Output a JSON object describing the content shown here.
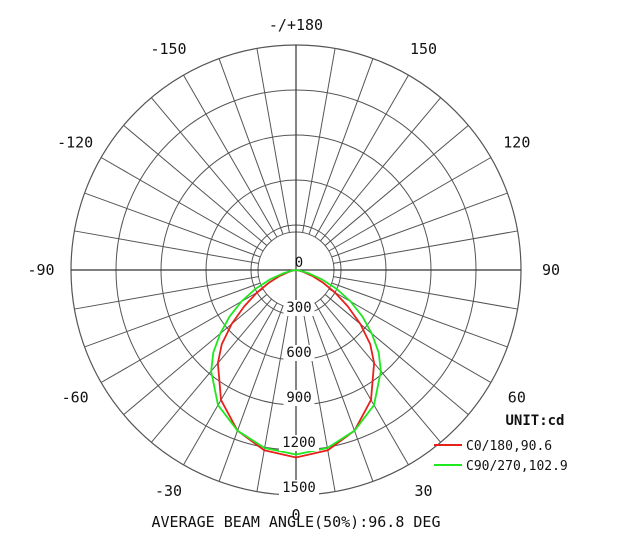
{
  "chart_data": {
    "type": "polar",
    "unit_label": "UNIT:cd",
    "radial_max": 1500,
    "radial_ticks": [
      "0",
      "300",
      "600",
      "900",
      "1200",
      "1500"
    ],
    "angle_step_deg": 10,
    "angle_labels": [
      {
        "angle": 0,
        "text": "0"
      },
      {
        "angle": 30,
        "text": "30"
      },
      {
        "angle": -30,
        "text": "-30"
      },
      {
        "angle": 60,
        "text": "60"
      },
      {
        "angle": -60,
        "text": "-60"
      },
      {
        "angle": 90,
        "text": "90"
      },
      {
        "angle": -90,
        "text": "-90"
      },
      {
        "angle": 120,
        "text": "120"
      },
      {
        "angle": -120,
        "text": "-120"
      },
      {
        "angle": 150,
        "text": "150"
      },
      {
        "angle": -150,
        "text": "-150"
      },
      {
        "angle": 180,
        "text": "-/+180"
      }
    ],
    "series": [
      {
        "name": "C0/180,90.6",
        "color": "#e8201c",
        "points": [
          [
            0,
            1250
          ],
          [
            10,
            1220
          ],
          [
            20,
            1140
          ],
          [
            30,
            1000
          ],
          [
            40,
            810
          ],
          [
            45,
            700
          ],
          [
            50,
            560
          ],
          [
            55,
            420
          ],
          [
            60,
            300
          ],
          [
            65,
            195
          ],
          [
            70,
            115
          ],
          [
            75,
            55
          ],
          [
            80,
            20
          ],
          [
            90,
            0
          ]
        ]
      },
      {
        "name": "C90/270,102.9",
        "color": "#1ee81e",
        "points": [
          [
            0,
            1230
          ],
          [
            10,
            1205
          ],
          [
            20,
            1140
          ],
          [
            30,
            1040
          ],
          [
            40,
            880
          ],
          [
            45,
            780
          ],
          [
            50,
            660
          ],
          [
            55,
            540
          ],
          [
            60,
            420
          ],
          [
            65,
            300
          ],
          [
            70,
            185
          ],
          [
            75,
            90
          ],
          [
            80,
            35
          ],
          [
            90,
            0
          ]
        ]
      }
    ],
    "footer": "AVERAGE BEAM ANGLE(50%):96.8 DEG"
  }
}
